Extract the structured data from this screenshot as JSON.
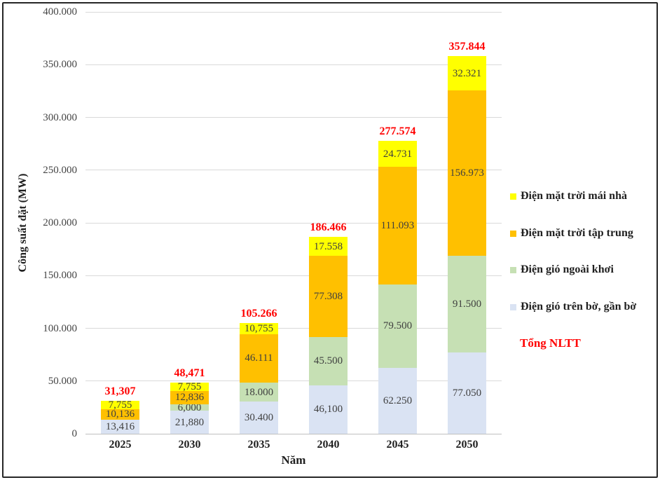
{
  "chart_data": {
    "type": "bar",
    "stacked": true,
    "title": "",
    "xlabel": "Năm",
    "ylabel": "Công suất đặt (MW)",
    "ylim": [
      0,
      400000
    ],
    "grid": true,
    "y_ticks": [
      {
        "value": 0,
        "label": "0"
      },
      {
        "value": 50000,
        "label": "50.000"
      },
      {
        "value": 100000,
        "label": "100.000"
      },
      {
        "value": 150000,
        "label": "150.000"
      },
      {
        "value": 200000,
        "label": "200.000"
      },
      {
        "value": 250000,
        "label": "250.000"
      },
      {
        "value": 300000,
        "label": "300.000"
      },
      {
        "value": 350000,
        "label": "350.000"
      },
      {
        "value": 400000,
        "label": "400.000"
      }
    ],
    "categories": [
      "2025",
      "2030",
      "2035",
      "2040",
      "2045",
      "2050"
    ],
    "series": [
      {
        "key": "dien-gio-tren-bo",
        "name": "Điện gió trên bờ, gần bờ",
        "color": "#dae3f3",
        "values": [
          13416,
          21880,
          30400,
          46100,
          62250,
          77050
        ],
        "labels": [
          "13,416",
          "21,880",
          "30.400",
          "46,100",
          "62.250",
          "77.050"
        ]
      },
      {
        "key": "dien-gio-ngoai-khoi",
        "name": "Điện gió ngoài khơi",
        "color": "#c6e0b4",
        "values": [
          0,
          6000,
          18000,
          45500,
          79500,
          91500
        ],
        "labels": [
          "",
          "6,000",
          "18.000",
          "45.500",
          "79.500",
          "91.500"
        ]
      },
      {
        "key": "dien-mat-troi-tap-trung",
        "name": "Điện mặt trời tập trung",
        "color": "#ffc000",
        "values": [
          10136,
          12836,
          46111,
          77308,
          111093,
          156973
        ],
        "labels": [
          "10,136",
          "12,836",
          "46.111",
          "77.308",
          "111.093",
          "156.973"
        ]
      },
      {
        "key": "dien-mat-troi-mai-nha",
        "name": "Điện mặt trời mái nhà",
        "color": "#ffff00",
        "values": [
          7755,
          7755,
          10755,
          17558,
          24731,
          32321
        ],
        "labels": [
          "7,755",
          "7,755",
          "10,755",
          "17.558",
          "24.731",
          "32.321"
        ]
      }
    ],
    "totals": {
      "name": "Tổng NLTT",
      "color": "#ff0000",
      "values": [
        31307,
        48471,
        105266,
        186466,
        277574,
        357844
      ],
      "labels": [
        "31,307",
        "48,471",
        "105.266",
        "186.466",
        "277.574",
        "357.844"
      ]
    },
    "legend": {
      "position": "right",
      "items": [
        {
          "label": "Điện mặt trời mái nhà",
          "color": "#ffff00"
        },
        {
          "label": "Điện mặt trời tập trung",
          "color": "#ffc000"
        },
        {
          "label": "Điện gió ngoài khơi",
          "color": "#c6e0b4"
        },
        {
          "label": "Điện gió trên bờ, gần bờ",
          "color": "#dae3f3"
        }
      ],
      "total_label": "Tổng NLTT"
    }
  }
}
